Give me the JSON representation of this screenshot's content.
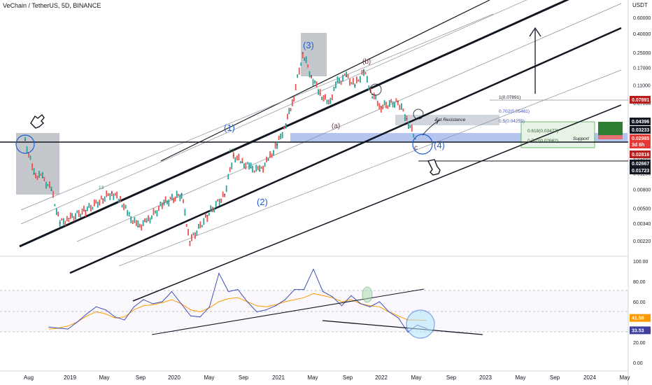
{
  "header": {
    "title": "VeChain / TetherUS, 5D, BINANCE",
    "currency": "USDT"
  },
  "annotations": {
    "waves": [
      "(1)",
      "(2)",
      "(3)",
      "(4)"
    ],
    "subwaves": [
      "(a)",
      "(b)",
      "c"
    ],
    "fat_resistance": "Fat Resistance",
    "support": "Support",
    "fib_top": "1(0.07891)",
    "fib_702_upper": "0.702(0.05461)",
    "fib_05": "0.5(0.04255)",
    "fib_618": "0.618(0.03477)",
    "fib_702_lower": "0.702(0.02662)",
    "td_13": "13"
  },
  "price_axis": {
    "ticks": [
      "0.60000",
      "0.40000",
      "0.25000",
      "0.17000",
      "0.11000",
      "0.07000",
      "0.04300",
      "0.02900",
      "0.01800",
      "0.01200",
      "0.00800",
      "0.00500",
      "0.00340",
      "0.00220"
    ],
    "badges": [
      {
        "text": "0.07891",
        "color": "#b71c1c"
      },
      {
        "text": "0.04396",
        "color": "#131722"
      },
      {
        "text": "0.03233",
        "color": "#131722"
      },
      {
        "text": "0.02985",
        "color": "#e53935"
      },
      {
        "text": "3d 6h",
        "color": "#e53935"
      },
      {
        "text": "0.02816",
        "color": "#b71c1c"
      },
      {
        "text": "0.02667",
        "color": "#131722"
      },
      {
        "text": "0.01723",
        "color": "#131722"
      }
    ]
  },
  "rsi_axis": {
    "ticks": [
      "100.00",
      "80.00",
      "60.00",
      "20.00",
      "0.00"
    ],
    "badges": [
      {
        "text": "41.58",
        "color": "#ff9800"
      },
      {
        "text": "33.53",
        "color": "#3f3f9f"
      }
    ]
  },
  "time_axis": [
    "Aug",
    "2019",
    "May",
    "Sep",
    "2020",
    "May",
    "Sep",
    "2021",
    "May",
    "Sep",
    "2022",
    "May",
    "Sep",
    "2023",
    "May",
    "Sep",
    "2024",
    "May"
  ],
  "chart_data": {
    "type": "line",
    "title": "VeChain / TetherUS, 5D, BINANCE",
    "y_scale": "log",
    "ylim": [
      0.0018,
      0.75
    ],
    "series": [
      {
        "x": [
          "2018-08",
          "2018-09",
          "2018-10",
          "2018-11",
          "2018-12",
          "2019-01",
          "2019-03",
          "2019-05",
          "2019-06",
          "2019-07",
          "2019-08",
          "2019-09",
          "2019-10",
          "2019-12",
          "2020-02",
          "2020-03",
          "2020-05",
          "2020-07",
          "2020-08",
          "2020-09",
          "2020-10",
          "2020-11",
          "2020-12",
          "2021-01",
          "2021-02",
          "2021-03",
          "2021-04",
          "2021-05",
          "2021-06",
          "2021-07",
          "2021-08",
          "2021-09",
          "2021-10",
          "2021-11",
          "2021-12",
          "2022-01",
          "2022-03",
          "2022-04",
          "2022-05"
        ],
        "y": [
          0.028,
          0.012,
          0.011,
          0.008,
          0.0035,
          0.0039,
          0.0048,
          0.0064,
          0.0075,
          0.0062,
          0.0042,
          0.0032,
          0.0036,
          0.0058,
          0.0072,
          0.0022,
          0.0042,
          0.0072,
          0.019,
          0.016,
          0.014,
          0.013,
          0.017,
          0.025,
          0.042,
          0.085,
          0.25,
          0.14,
          0.09,
          0.07,
          0.12,
          0.14,
          0.11,
          0.16,
          0.088,
          0.065,
          0.074,
          0.048,
          0.029
        ]
      }
    ],
    "rsi": {
      "ylim": [
        0,
        100
      ],
      "levels": [
        70,
        50,
        30
      ],
      "rsi_values": [
        35,
        34,
        33,
        40,
        48,
        55,
        52,
        45,
        42,
        55,
        62,
        58,
        60,
        70,
        58,
        46,
        45,
        55,
        88,
        70,
        72,
        60,
        50,
        52,
        56,
        62,
        72,
        72,
        92,
        70,
        65,
        56,
        66,
        58,
        55,
        60,
        50,
        44,
        30,
        37,
        33.53
      ],
      "ma_values": [
        33,
        34,
        36,
        40,
        46,
        50,
        48,
        44,
        45,
        52,
        56,
        57,
        59,
        62,
        58,
        52,
        50,
        54,
        60,
        63,
        64,
        60,
        56,
        55,
        57,
        60,
        62,
        64,
        68,
        66,
        64,
        60,
        62,
        58,
        56,
        55,
        50,
        46,
        42,
        42,
        41.58
      ]
    }
  }
}
